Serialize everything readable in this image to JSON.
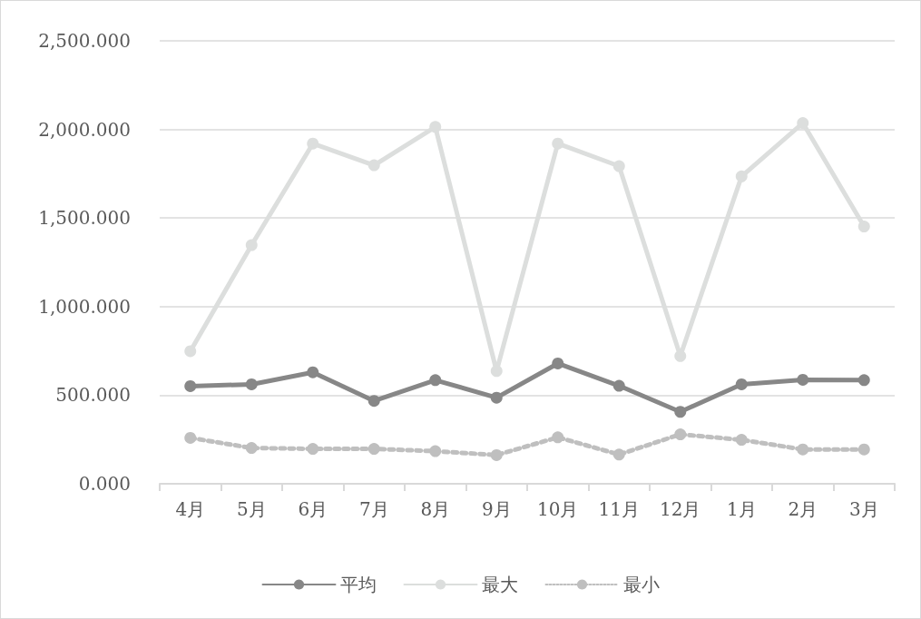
{
  "chart_data": {
    "type": "line",
    "categories": [
      "4月",
      "5月",
      "6月",
      "7月",
      "8月",
      "9月",
      "10月",
      "11月",
      "12月",
      "1月",
      "2月",
      "3月"
    ],
    "series": [
      {
        "name": "平均",
        "color": "#878787",
        "line_style": "solid",
        "values": [
          551,
          561,
          629,
          468,
          585,
          486,
          679,
          553,
          406,
          561,
          587,
          585
        ]
      },
      {
        "name": "最大",
        "color": "#dcdedd",
        "line_style": "solid",
        "values": [
          748,
          1347,
          1920,
          1798,
          2014,
          636,
          1920,
          1793,
          721,
          1735,
          2036,
          1452
        ]
      },
      {
        "name": "最小",
        "color": "#bfbfbf",
        "line_style": "dotted",
        "values": [
          259,
          202,
          197,
          197,
          184,
          162,
          262,
          165,
          279,
          248,
          194,
          194
        ]
      }
    ],
    "ylim": [
      0,
      2500
    ],
    "yticks": [
      {
        "value": 0,
        "label": "0.000"
      },
      {
        "value": 500,
        "label": "500.000"
      },
      {
        "value": 1000,
        "label": "1,000.000"
      },
      {
        "value": 1500,
        "label": "1,500.000"
      },
      {
        "value": 2000,
        "label": "2,000.000"
      },
      {
        "value": 2500,
        "label": "2,500.000"
      }
    ],
    "grid": "y",
    "legend": "bottom",
    "marker": "circle"
  }
}
